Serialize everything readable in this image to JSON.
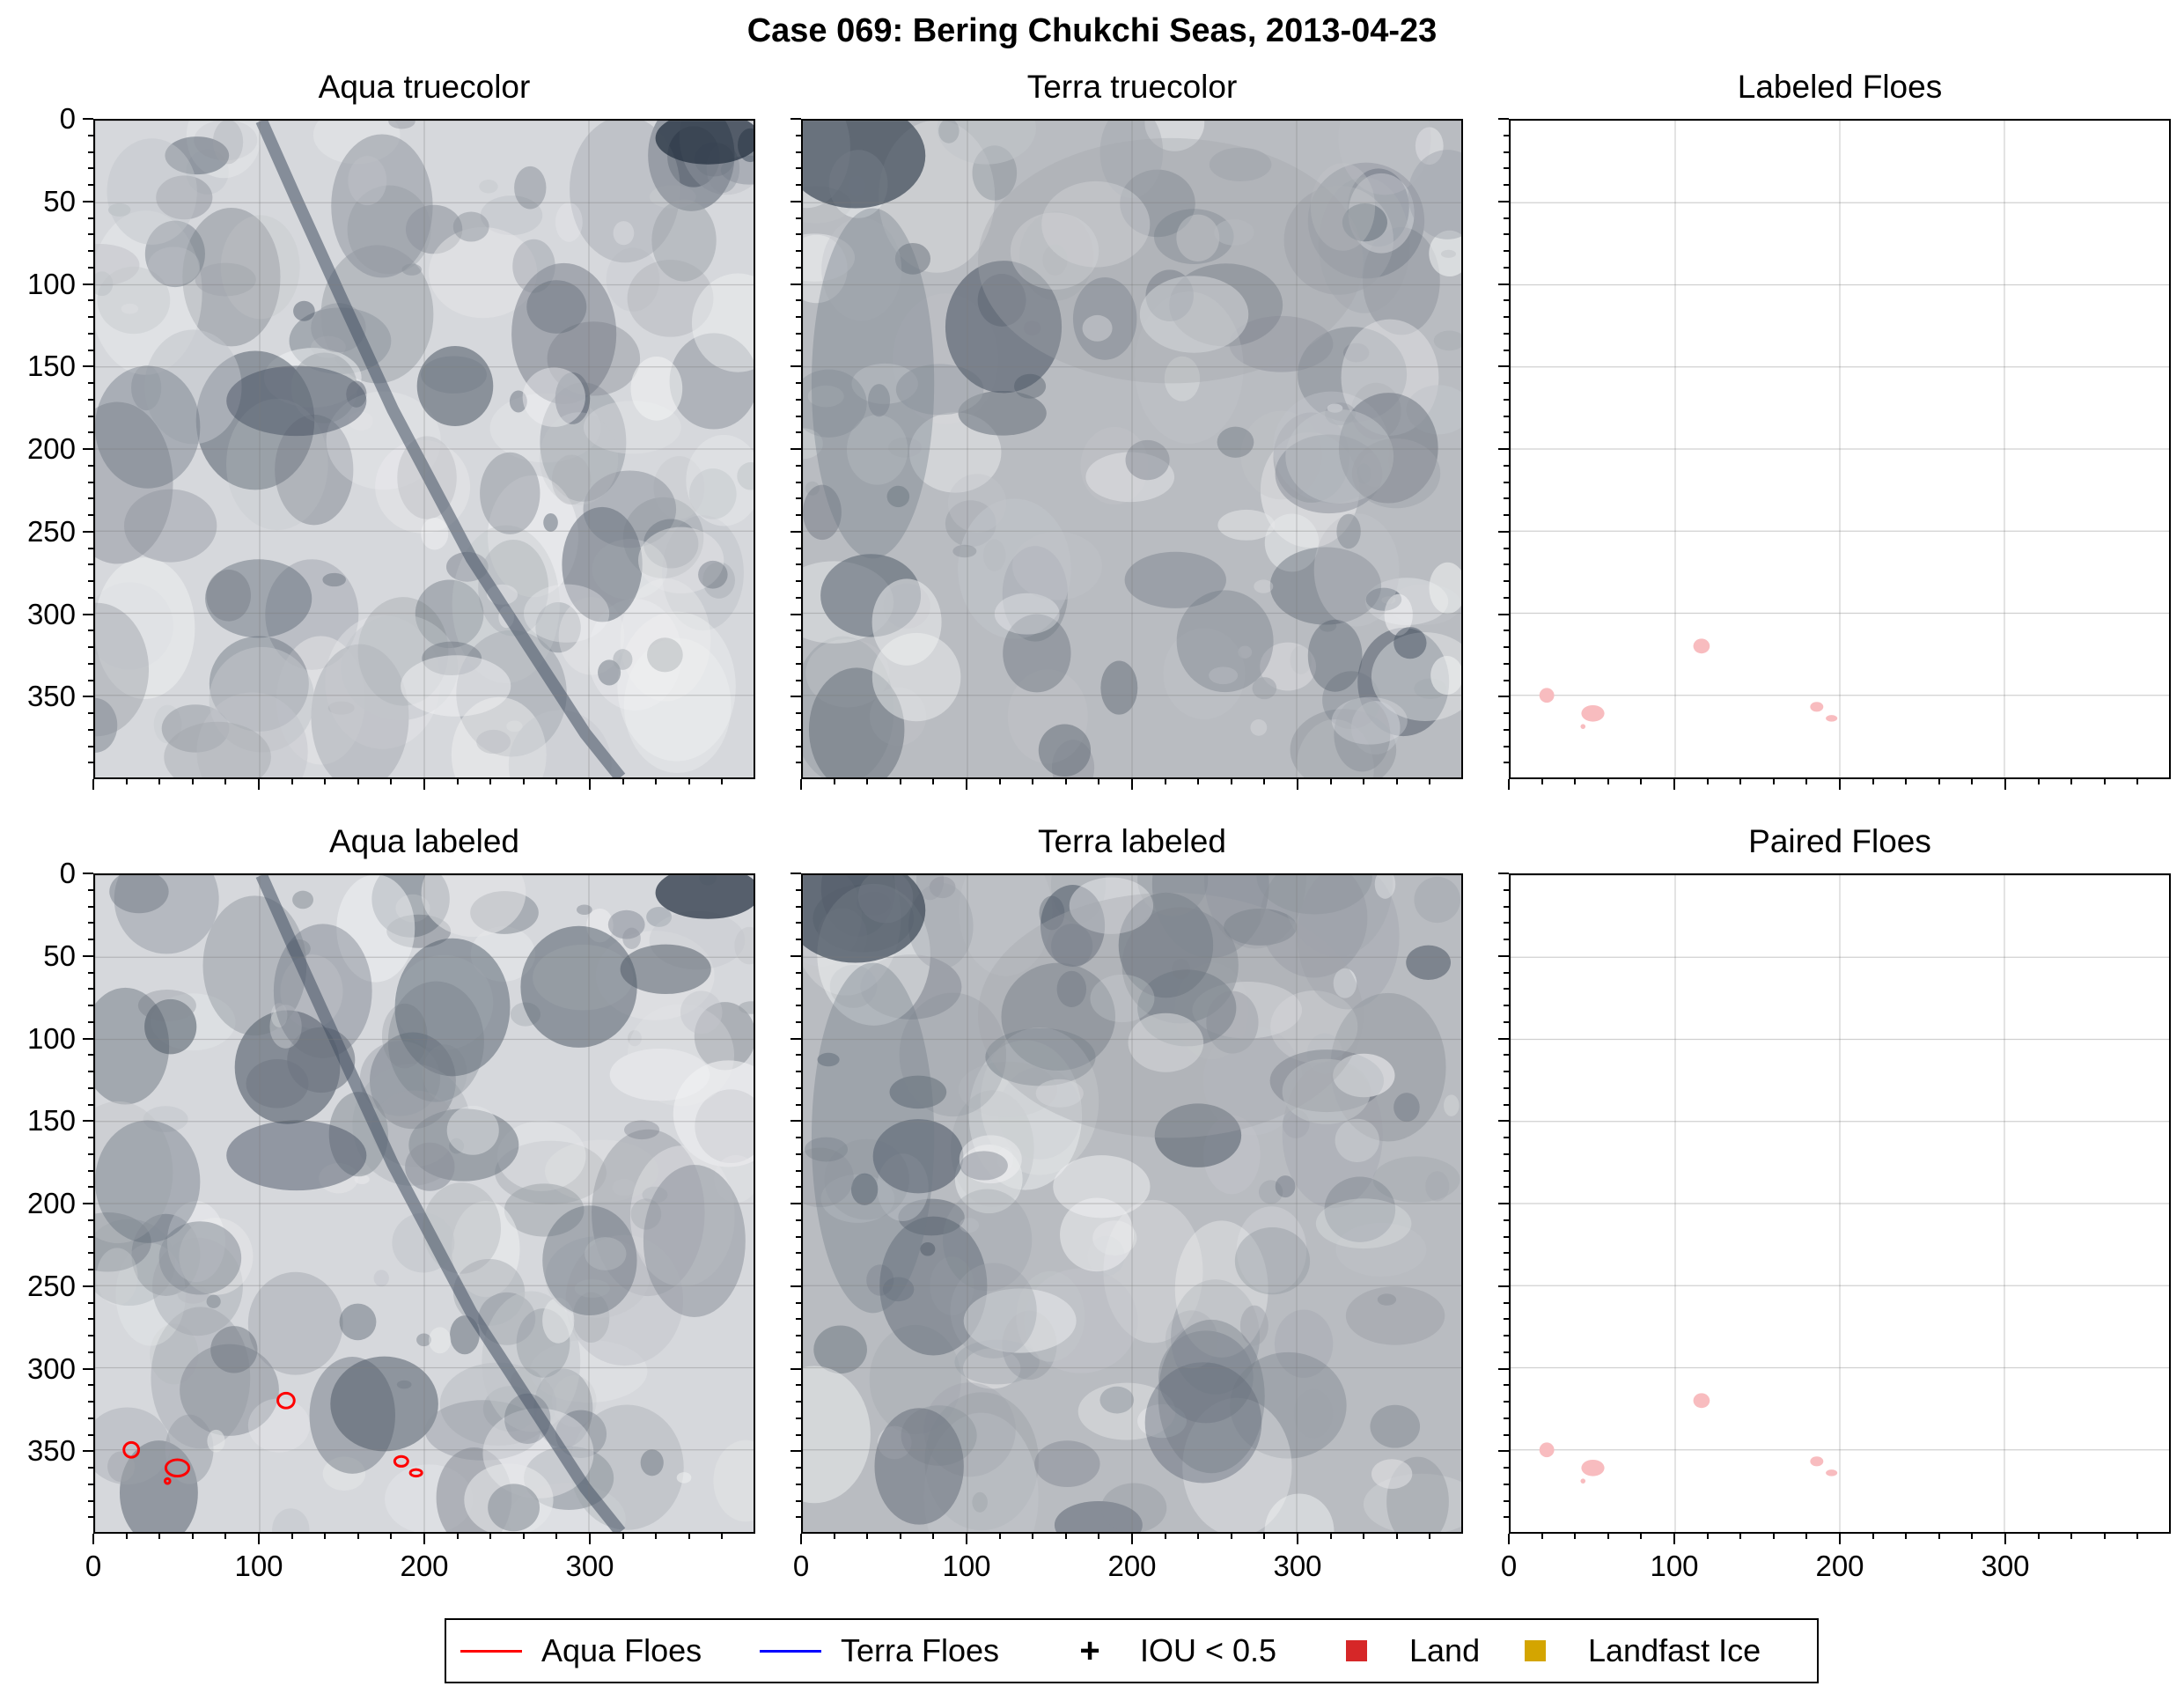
{
  "figure": {
    "suptitle": "Case 069: Bering Chukchi Seas, 2013-04-23"
  },
  "panels": [
    {
      "id": "aqua-truecolor",
      "title": "Aqua truecolor",
      "kind": "satellite",
      "base_color": "#d6d8dc"
    },
    {
      "id": "terra-truecolor",
      "title": "Terra truecolor",
      "kind": "satellite",
      "base_color": "#b9bcc1"
    },
    {
      "id": "labeled-floes",
      "title": "Labeled Floes",
      "kind": "floes"
    },
    {
      "id": "aqua-labeled",
      "title": "Aqua labeled",
      "kind": "satellite",
      "base_color": "#d6d8dc"
    },
    {
      "id": "terra-labeled",
      "title": "Terra labeled",
      "kind": "satellite",
      "base_color": "#b9bcc1"
    },
    {
      "id": "paired-floes",
      "title": "Paired Floes",
      "kind": "floes"
    }
  ],
  "axes": {
    "x_ticks": [
      "0",
      "100",
      "200",
      "300"
    ],
    "y_ticks": [
      "0",
      "50",
      "100",
      "150",
      "200",
      "250",
      "300",
      "350"
    ],
    "x_range": [
      0,
      400
    ],
    "y_range": [
      0,
      400
    ],
    "grid": true
  },
  "floes": [
    {
      "x": 22,
      "y": 350,
      "w": 9,
      "h": 9
    },
    {
      "x": 50,
      "y": 361,
      "w": 14,
      "h": 10
    },
    {
      "x": 44,
      "y": 369,
      "w": 3,
      "h": 3
    },
    {
      "x": 116,
      "y": 320,
      "w": 10,
      "h": 9
    },
    {
      "x": 186,
      "y": 357,
      "w": 8,
      "h": 6
    },
    {
      "x": 195,
      "y": 364,
      "w": 7,
      "h": 4
    }
  ],
  "floe_fill_color": "#f8bcbf",
  "aqua_outline_color": "#ff0000",
  "legend": {
    "items": [
      {
        "label": "Aqua Floes",
        "type": "line",
        "color": "#ff0000"
      },
      {
        "label": "Terra Floes",
        "type": "line",
        "color": "#0000ff"
      },
      {
        "label": "IOU < 0.5",
        "type": "plus",
        "color": "#000000"
      },
      {
        "label": "Land",
        "type": "square",
        "color": "#d62728"
      },
      {
        "label": "Landfast Ice",
        "type": "square",
        "color": "#d4a500"
      }
    ]
  }
}
